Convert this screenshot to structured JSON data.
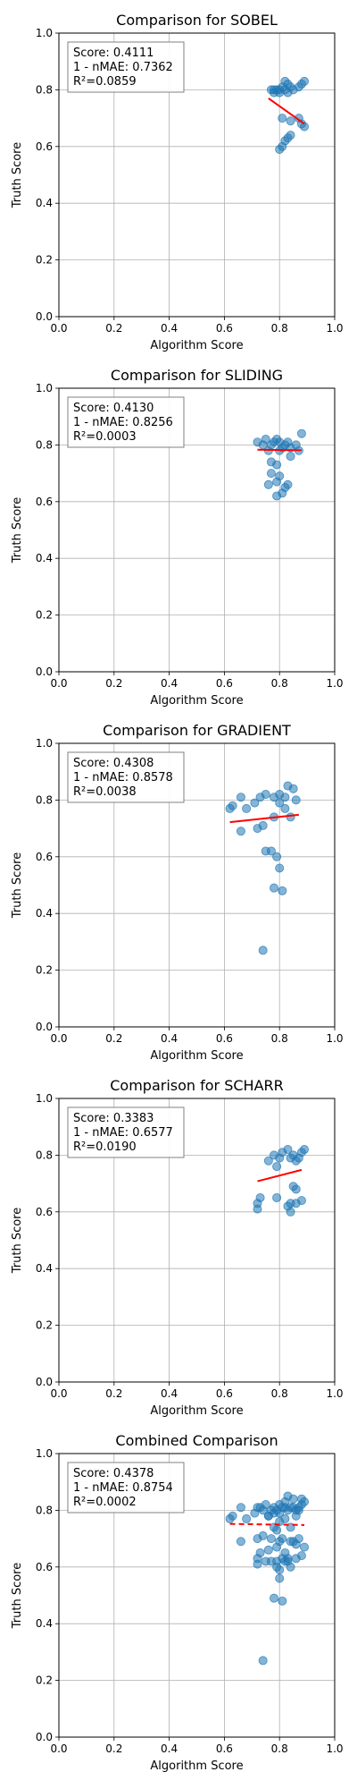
{
  "chart_data": [
    {
      "type": "scatter",
      "title": "Comparison for SOBEL",
      "xlabel": "Algorithm Score",
      "ylabel": "Truth Score",
      "xlim": [
        0,
        1
      ],
      "ylim": [
        0,
        1
      ],
      "xticks": [
        "0.0",
        "0.2",
        "0.4",
        "0.6",
        "0.8",
        "1.0"
      ],
      "yticks": [
        "0.0",
        "0.2",
        "0.4",
        "0.6",
        "0.8",
        "1.0"
      ],
      "grid": true,
      "stats": [
        "Score: 0.4111",
        "1 - nMAE: 0.7362",
        "R²=0.0859"
      ],
      "stats_placement": "top-left",
      "point_color": "#1f77b4",
      "line_color": "#ff0000",
      "line_style": "solid",
      "points": [
        [
          0.77,
          0.8
        ],
        [
          0.78,
          0.79
        ],
        [
          0.79,
          0.8
        ],
        [
          0.8,
          0.8
        ],
        [
          0.81,
          0.81
        ],
        [
          0.82,
          0.83
        ],
        [
          0.83,
          0.82
        ],
        [
          0.82,
          0.8
        ],
        [
          0.84,
          0.81
        ],
        [
          0.8,
          0.79
        ],
        [
          0.78,
          0.8
        ],
        [
          0.83,
          0.79
        ],
        [
          0.85,
          0.8
        ],
        [
          0.87,
          0.81
        ],
        [
          0.88,
          0.82
        ],
        [
          0.89,
          0.83
        ],
        [
          0.81,
          0.7
        ],
        [
          0.84,
          0.69
        ],
        [
          0.87,
          0.7
        ],
        [
          0.88,
          0.68
        ],
        [
          0.89,
          0.67
        ],
        [
          0.83,
          0.63
        ],
        [
          0.82,
          0.62
        ],
        [
          0.84,
          0.64
        ],
        [
          0.8,
          0.59
        ],
        [
          0.81,
          0.6
        ]
      ],
      "fit_line": [
        [
          0.76,
          0.77
        ],
        [
          0.89,
          0.68
        ]
      ]
    },
    {
      "type": "scatter",
      "title": "Comparison for SLIDING",
      "xlabel": "Algorithm Score",
      "ylabel": "Truth Score",
      "xlim": [
        0,
        1
      ],
      "ylim": [
        0,
        1
      ],
      "xticks": [
        "0.0",
        "0.2",
        "0.4",
        "0.6",
        "0.8",
        "1.0"
      ],
      "yticks": [
        "0.0",
        "0.2",
        "0.4",
        "0.6",
        "0.8",
        "1.0"
      ],
      "grid": true,
      "stats": [
        "Score: 0.4130",
        "1 - nMAE: 0.8256",
        "R²=0.0003"
      ],
      "stats_placement": "top-left",
      "point_color": "#1f77b4",
      "line_color": "#ff0000",
      "line_style": "solid",
      "points": [
        [
          0.72,
          0.81
        ],
        [
          0.74,
          0.8
        ],
        [
          0.75,
          0.82
        ],
        [
          0.77,
          0.8
        ],
        [
          0.78,
          0.81
        ],
        [
          0.79,
          0.82
        ],
        [
          0.8,
          0.81
        ],
        [
          0.81,
          0.79
        ],
        [
          0.82,
          0.8
        ],
        [
          0.83,
          0.81
        ],
        [
          0.84,
          0.79
        ],
        [
          0.86,
          0.8
        ],
        [
          0.88,
          0.84
        ],
        [
          0.76,
          0.78
        ],
        [
          0.8,
          0.78
        ],
        [
          0.84,
          0.76
        ],
        [
          0.77,
          0.74
        ],
        [
          0.79,
          0.73
        ],
        [
          0.77,
          0.7
        ],
        [
          0.8,
          0.69
        ],
        [
          0.76,
          0.66
        ],
        [
          0.79,
          0.67
        ],
        [
          0.82,
          0.65
        ],
        [
          0.81,
          0.63
        ],
        [
          0.79,
          0.62
        ],
        [
          0.83,
          0.66
        ],
        [
          0.87,
          0.78
        ]
      ],
      "fit_line": [
        [
          0.72,
          0.783
        ],
        [
          0.88,
          0.781
        ]
      ]
    },
    {
      "type": "scatter",
      "title": "Comparison for GRADIENT",
      "xlabel": "Algorithm Score",
      "ylabel": "Truth Score",
      "xlim": [
        0,
        1
      ],
      "ylim": [
        0,
        1
      ],
      "xticks": [
        "0.0",
        "0.2",
        "0.4",
        "0.6",
        "0.8",
        "1.0"
      ],
      "yticks": [
        "0.0",
        "0.2",
        "0.4",
        "0.6",
        "0.8",
        "1.0"
      ],
      "grid": true,
      "stats": [
        "Score: 0.4308",
        "1 - nMAE: 0.8578",
        "R²=0.0038"
      ],
      "stats_placement": "top-left",
      "point_color": "#1f77b4",
      "line_color": "#ff0000",
      "line_style": "solid",
      "points": [
        [
          0.62,
          0.77
        ],
        [
          0.63,
          0.78
        ],
        [
          0.66,
          0.81
        ],
        [
          0.68,
          0.77
        ],
        [
          0.71,
          0.79
        ],
        [
          0.73,
          0.81
        ],
        [
          0.75,
          0.82
        ],
        [
          0.78,
          0.81
        ],
        [
          0.8,
          0.82
        ],
        [
          0.82,
          0.81
        ],
        [
          0.83,
          0.85
        ],
        [
          0.85,
          0.84
        ],
        [
          0.86,
          0.8
        ],
        [
          0.8,
          0.79
        ],
        [
          0.82,
          0.77
        ],
        [
          0.84,
          0.74
        ],
        [
          0.78,
          0.74
        ],
        [
          0.74,
          0.71
        ],
        [
          0.72,
          0.7
        ],
        [
          0.66,
          0.69
        ],
        [
          0.75,
          0.62
        ],
        [
          0.77,
          0.62
        ],
        [
          0.79,
          0.6
        ],
        [
          0.8,
          0.56
        ],
        [
          0.78,
          0.49
        ],
        [
          0.81,
          0.48
        ],
        [
          0.74,
          0.27
        ]
      ],
      "fit_line": [
        [
          0.62,
          0.722
        ],
        [
          0.87,
          0.748
        ]
      ]
    },
    {
      "type": "scatter",
      "title": "Comparison for SCHARR",
      "xlabel": "Algorithm Score",
      "ylabel": "Truth Score",
      "xlim": [
        0,
        1
      ],
      "ylim": [
        0,
        1
      ],
      "xticks": [
        "0.0",
        "0.2",
        "0.4",
        "0.6",
        "0.8",
        "1.0"
      ],
      "yticks": [
        "0.0",
        "0.2",
        "0.4",
        "0.6",
        "0.8",
        "1.0"
      ],
      "grid": true,
      "stats": [
        "Score: 0.3383",
        "1 - nMAE: 0.6577",
        "R²=0.0190"
      ],
      "stats_placement": "top-left",
      "point_color": "#1f77b4",
      "line_color": "#ff0000",
      "line_style": "solid",
      "points": [
        [
          0.76,
          0.78
        ],
        [
          0.78,
          0.8
        ],
        [
          0.8,
          0.79
        ],
        [
          0.81,
          0.81
        ],
        [
          0.83,
          0.82
        ],
        [
          0.85,
          0.8
        ],
        [
          0.86,
          0.78
        ],
        [
          0.88,
          0.81
        ],
        [
          0.89,
          0.82
        ],
        [
          0.87,
          0.79
        ],
        [
          0.79,
          0.76
        ],
        [
          0.84,
          0.79
        ],
        [
          0.85,
          0.69
        ],
        [
          0.86,
          0.68
        ],
        [
          0.73,
          0.65
        ],
        [
          0.72,
          0.63
        ],
        [
          0.72,
          0.61
        ],
        [
          0.79,
          0.65
        ],
        [
          0.83,
          0.62
        ],
        [
          0.84,
          0.63
        ],
        [
          0.86,
          0.63
        ],
        [
          0.88,
          0.64
        ],
        [
          0.84,
          0.6
        ]
      ],
      "fit_line": [
        [
          0.72,
          0.708
        ],
        [
          0.88,
          0.748
        ]
      ]
    },
    {
      "type": "scatter",
      "title": "Combined Comparison",
      "xlabel": "Algorithm Score",
      "ylabel": "Truth Score",
      "xlim": [
        0,
        1
      ],
      "ylim": [
        0,
        1
      ],
      "xticks": [
        "0.0",
        "0.2",
        "0.4",
        "0.6",
        "0.8",
        "1.0"
      ],
      "yticks": [
        "0.0",
        "0.2",
        "0.4",
        "0.6",
        "0.8",
        "1.0"
      ],
      "grid": true,
      "stats": [
        "Score: 0.4378",
        "1 - nMAE: 0.8754",
        "R²=0.0002"
      ],
      "stats_placement": "top-left",
      "point_color": "#1f77b4",
      "line_color": "#ff0000",
      "line_style": "dashed",
      "points": [
        [
          0.62,
          0.77
        ],
        [
          0.63,
          0.78
        ],
        [
          0.66,
          0.81
        ],
        [
          0.68,
          0.77
        ],
        [
          0.71,
          0.79
        ],
        [
          0.73,
          0.81
        ],
        [
          0.75,
          0.82
        ],
        [
          0.78,
          0.81
        ],
        [
          0.8,
          0.82
        ],
        [
          0.82,
          0.81
        ],
        [
          0.83,
          0.85
        ],
        [
          0.85,
          0.84
        ],
        [
          0.86,
          0.8
        ],
        [
          0.8,
          0.79
        ],
        [
          0.82,
          0.77
        ],
        [
          0.84,
          0.74
        ],
        [
          0.78,
          0.74
        ],
        [
          0.74,
          0.71
        ],
        [
          0.72,
          0.7
        ],
        [
          0.66,
          0.69
        ],
        [
          0.75,
          0.62
        ],
        [
          0.77,
          0.62
        ],
        [
          0.79,
          0.6
        ],
        [
          0.8,
          0.56
        ],
        [
          0.78,
          0.49
        ],
        [
          0.81,
          0.48
        ],
        [
          0.74,
          0.27
        ],
        [
          0.77,
          0.8
        ],
        [
          0.79,
          0.8
        ],
        [
          0.81,
          0.81
        ],
        [
          0.82,
          0.83
        ],
        [
          0.84,
          0.81
        ],
        [
          0.87,
          0.81
        ],
        [
          0.88,
          0.82
        ],
        [
          0.89,
          0.83
        ],
        [
          0.81,
          0.7
        ],
        [
          0.84,
          0.69
        ],
        [
          0.87,
          0.7
        ],
        [
          0.89,
          0.67
        ],
        [
          0.83,
          0.63
        ],
        [
          0.82,
          0.62
        ],
        [
          0.8,
          0.59
        ],
        [
          0.72,
          0.81
        ],
        [
          0.74,
          0.8
        ],
        [
          0.76,
          0.78
        ],
        [
          0.79,
          0.73
        ],
        [
          0.77,
          0.7
        ],
        [
          0.8,
          0.69
        ],
        [
          0.76,
          0.66
        ],
        [
          0.79,
          0.67
        ],
        [
          0.82,
          0.65
        ],
        [
          0.81,
          0.63
        ],
        [
          0.79,
          0.62
        ],
        [
          0.88,
          0.84
        ],
        [
          0.86,
          0.78
        ],
        [
          0.85,
          0.69
        ],
        [
          0.86,
          0.68
        ],
        [
          0.73,
          0.65
        ],
        [
          0.72,
          0.63
        ],
        [
          0.72,
          0.61
        ],
        [
          0.83,
          0.62
        ],
        [
          0.86,
          0.63
        ],
        [
          0.88,
          0.64
        ],
        [
          0.84,
          0.6
        ],
        [
          0.76,
          0.78
        ],
        [
          0.83,
          0.8
        ],
        [
          0.85,
          0.81
        ],
        [
          0.87,
          0.8
        ],
        [
          0.78,
          0.79
        ],
        [
          0.8,
          0.76
        ]
      ],
      "fit_line": [
        [
          0.62,
          0.752
        ],
        [
          0.89,
          0.748
        ]
      ]
    }
  ]
}
